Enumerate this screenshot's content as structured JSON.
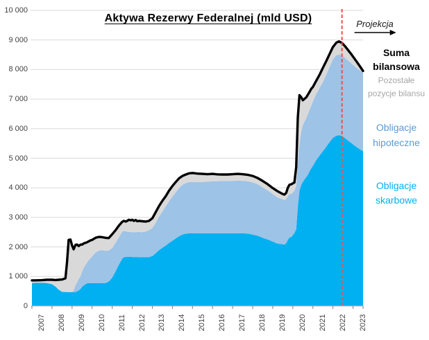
{
  "chart_data": {
    "type": "area",
    "title": "Aktywa Rezerwy Federalnej (mld USD)",
    "stacked": true,
    "grid": true,
    "legend_position": "right",
    "ylim": [
      0,
      10000
    ],
    "ytick_labels": [
      "0",
      "1 000",
      "2 000",
      "3 000",
      "4 000",
      "5 000",
      "6 000",
      "7 000",
      "8 000",
      "9 000",
      "10 000"
    ],
    "x_range": [
      2007,
      2023.5
    ],
    "x_year_labels": [
      "2007",
      "2008",
      "2009",
      "2010",
      "2011",
      "2012",
      "2013",
      "2014",
      "2015",
      "2016",
      "2017",
      "2018",
      "2019",
      "2020",
      "2021",
      "2022",
      "2023"
    ],
    "projection": {
      "x": 2022.45,
      "label": "Projekcja"
    },
    "colors": {
      "treasuries_area": "#00B0F0",
      "mbs_area": "#9DC3E6",
      "other_area": "#D9D9D9",
      "total_line": "#000000",
      "projection_line": "#F0504E",
      "grid": "#D9D9D9",
      "axis_line": "#BFBFBF",
      "tick": "#808080",
      "axis_text": "#404040",
      "legend_suma": "#000000",
      "legend_pozostale": "#A6A6A6",
      "legend_hipoteczne": "#5B9BD5",
      "legend_skarbowe": "#00B0F0"
    },
    "x": [
      2007.0,
      2007.25,
      2007.5,
      2007.75,
      2008.0,
      2008.17,
      2008.33,
      2008.5,
      2008.67,
      2008.75,
      2008.83,
      2008.92,
      2009.0,
      2009.08,
      2009.17,
      2009.25,
      2009.33,
      2009.42,
      2009.5,
      2009.58,
      2009.67,
      2009.75,
      2009.83,
      2009.92,
      2010.0,
      2010.17,
      2010.33,
      2010.5,
      2010.67,
      2010.83,
      2011.0,
      2011.17,
      2011.33,
      2011.5,
      2011.58,
      2011.67,
      2011.75,
      2011.83,
      2011.92,
      2012.0,
      2012.08,
      2012.17,
      2012.25,
      2012.33,
      2012.5,
      2012.67,
      2012.83,
      2013.0,
      2013.17,
      2013.33,
      2013.5,
      2013.67,
      2013.83,
      2014.0,
      2014.17,
      2014.33,
      2014.5,
      2014.67,
      2014.83,
      2015.0,
      2015.25,
      2015.5,
      2015.75,
      2016.0,
      2016.25,
      2016.5,
      2016.75,
      2017.0,
      2017.25,
      2017.5,
      2017.75,
      2018.0,
      2018.25,
      2018.5,
      2018.75,
      2019.0,
      2019.25,
      2019.5,
      2019.58,
      2019.67,
      2019.75,
      2019.83,
      2019.92,
      2020.0,
      2020.08,
      2020.17,
      2020.25,
      2020.33,
      2020.42,
      2020.5,
      2020.58,
      2020.67,
      2020.75,
      2020.83,
      2020.92,
      2021.0,
      2021.17,
      2021.33,
      2021.5,
      2021.67,
      2021.83,
      2022.0,
      2022.17,
      2022.3,
      2022.45,
      2022.6,
      2022.75,
      2022.9,
      2023.05,
      2023.2,
      2023.35,
      2023.5
    ],
    "series": [
      {
        "name": "Obligacje skarbowe",
        "type": "area",
        "color": "#00B0F0",
        "values": [
          780,
          790,
          790,
          780,
          740,
          660,
          560,
          480,
          477,
          476,
          476,
          475,
          475,
          475,
          475,
          500,
          530,
          580,
          650,
          700,
          740,
          770,
          775,
          776,
          777,
          777,
          777,
          777,
          780,
          830,
          960,
          1180,
          1400,
          1600,
          1650,
          1660,
          1665,
          1670,
          1668,
          1660,
          1658,
          1660,
          1660,
          1658,
          1650,
          1650,
          1655,
          1690,
          1790,
          1890,
          1970,
          2050,
          2130,
          2210,
          2290,
          2360,
          2420,
          2450,
          2460,
          2460,
          2460,
          2460,
          2461,
          2461,
          2461,
          2461,
          2462,
          2462,
          2462,
          2462,
          2450,
          2420,
          2380,
          2310,
          2250,
          2180,
          2110,
          2090,
          2080,
          2130,
          2230,
          2320,
          2330,
          2400,
          2470,
          2600,
          3340,
          3900,
          4100,
          4200,
          4280,
          4360,
          4440,
          4550,
          4660,
          4740,
          4940,
          5090,
          5240,
          5390,
          5540,
          5690,
          5760,
          5780,
          5760,
          5680,
          5600,
          5520,
          5440,
          5370,
          5300,
          5240
        ]
      },
      {
        "name": "Obligacje hipoteczne",
        "type": "area",
        "color": "#9DC3E6",
        "values": [
          0,
          0,
          0,
          0,
          0,
          0,
          0,
          0,
          0,
          0,
          0,
          0,
          5,
          60,
          230,
          300,
          380,
          430,
          520,
          590,
          650,
          700,
          780,
          840,
          900,
          1030,
          1100,
          1110,
          1090,
          1050,
          1000,
          960,
          930,
          905,
          890,
          870,
          850,
          840,
          837,
          835,
          833,
          840,
          845,
          848,
          852,
          870,
          910,
          950,
          1030,
          1130,
          1230,
          1320,
          1410,
          1490,
          1560,
          1630,
          1680,
          1710,
          1730,
          1737,
          1735,
          1740,
          1745,
          1760,
          1760,
          1770,
          1770,
          1770,
          1780,
          1775,
          1770,
          1760,
          1740,
          1700,
          1660,
          1610,
          1560,
          1520,
          1500,
          1490,
          1480,
          1470,
          1460,
          1440,
          1430,
          1450,
          1530,
          1560,
          1820,
          1920,
          1960,
          1990,
          2040,
          2080,
          2120,
          2180,
          2230,
          2280,
          2340,
          2440,
          2540,
          2660,
          2720,
          2730,
          2725,
          2715,
          2705,
          2695,
          2685,
          2675,
          2665,
          2655
        ]
      },
      {
        "name": "Pozostałe pozycje bilansu",
        "type": "area",
        "color": "#D9D9D9",
        "derived": "total_minus_treasuries_minus_mbs"
      },
      {
        "name": "Suma bilansowa",
        "type": "line",
        "color": "#000000",
        "values": [
          870,
          872,
          875,
          890,
          890,
          880,
          890,
          900,
          940,
          1500,
          2240,
          2250,
          2050,
          1920,
          2070,
          2080,
          2030,
          2080,
          2080,
          2120,
          2140,
          2160,
          2190,
          2220,
          2240,
          2310,
          2340,
          2330,
          2310,
          2300,
          2430,
          2570,
          2720,
          2850,
          2880,
          2860,
          2880,
          2920,
          2900,
          2920,
          2880,
          2910,
          2870,
          2880,
          2870,
          2860,
          2880,
          2970,
          3180,
          3380,
          3560,
          3720,
          3900,
          4060,
          4200,
          4320,
          4400,
          4450,
          4490,
          4500,
          4480,
          4470,
          4460,
          4470,
          4455,
          4450,
          4450,
          4460,
          4470,
          4460,
          4440,
          4400,
          4330,
          4230,
          4120,
          3990,
          3880,
          3790,
          3770,
          3830,
          4000,
          4100,
          4120,
          4150,
          4180,
          4700,
          6370,
          7130,
          7060,
          6960,
          7010,
          7060,
          7150,
          7240,
          7350,
          7410,
          7620,
          7820,
          8060,
          8290,
          8520,
          8760,
          8910,
          8950,
          8900,
          8790,
          8660,
          8530,
          8390,
          8250,
          8100,
          7950
        ]
      }
    ]
  },
  "legend": {
    "suma": "Suma bilansowa",
    "pozostale": "Pozostałe pozycje bilansu",
    "hipoteczne": "Obligacje hipoteczne",
    "skarbowe": "Obligacje skarbowe"
  }
}
